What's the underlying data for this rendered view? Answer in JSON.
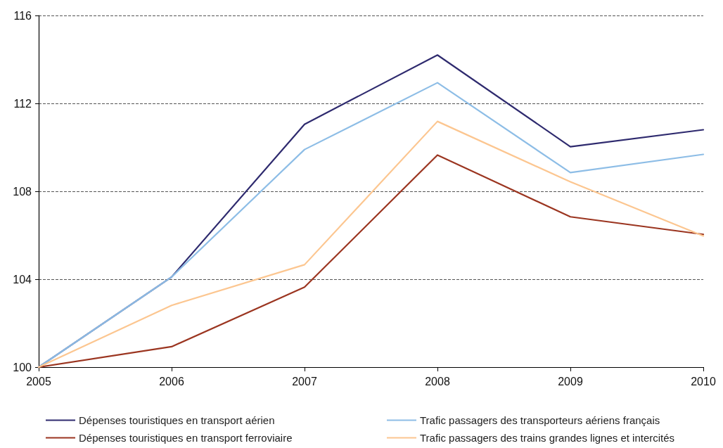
{
  "chart_data": {
    "type": "line",
    "x": [
      2005,
      2006,
      2007,
      2008,
      2009,
      2010
    ],
    "xlim": [
      2005,
      2010
    ],
    "xticks": [
      2005,
      2006,
      2007,
      2008,
      2009,
      2010
    ],
    "ylim": [
      100,
      116
    ],
    "yticks": [
      100,
      104,
      108,
      112,
      116
    ],
    "grid": "y",
    "legend": "bottom",
    "marker": "none",
    "line_style": "solid",
    "series": [
      {
        "name": "Dépenses touristiques en transport aérien",
        "color": "#2e2a6e",
        "values": [
          100,
          104.1,
          111.05,
          114.2,
          110.03,
          110.8
        ]
      },
      {
        "name": "Trafic passagers des transporteurs aériens français",
        "color": "#8dbde6",
        "values": [
          100,
          104.1,
          109.9,
          112.94,
          108.85,
          109.68
        ]
      },
      {
        "name": "Dépenses touristiques en transport ferroviaire",
        "color": "#9b3520",
        "values": [
          100,
          100.93,
          103.64,
          109.65,
          106.84,
          106.04
        ]
      },
      {
        "name": "Trafic passagers des trains grandes lignes et intercités",
        "color": "#fcc690",
        "values": [
          100,
          102.81,
          104.66,
          111.18,
          108.43,
          105.97
        ]
      }
    ]
  }
}
